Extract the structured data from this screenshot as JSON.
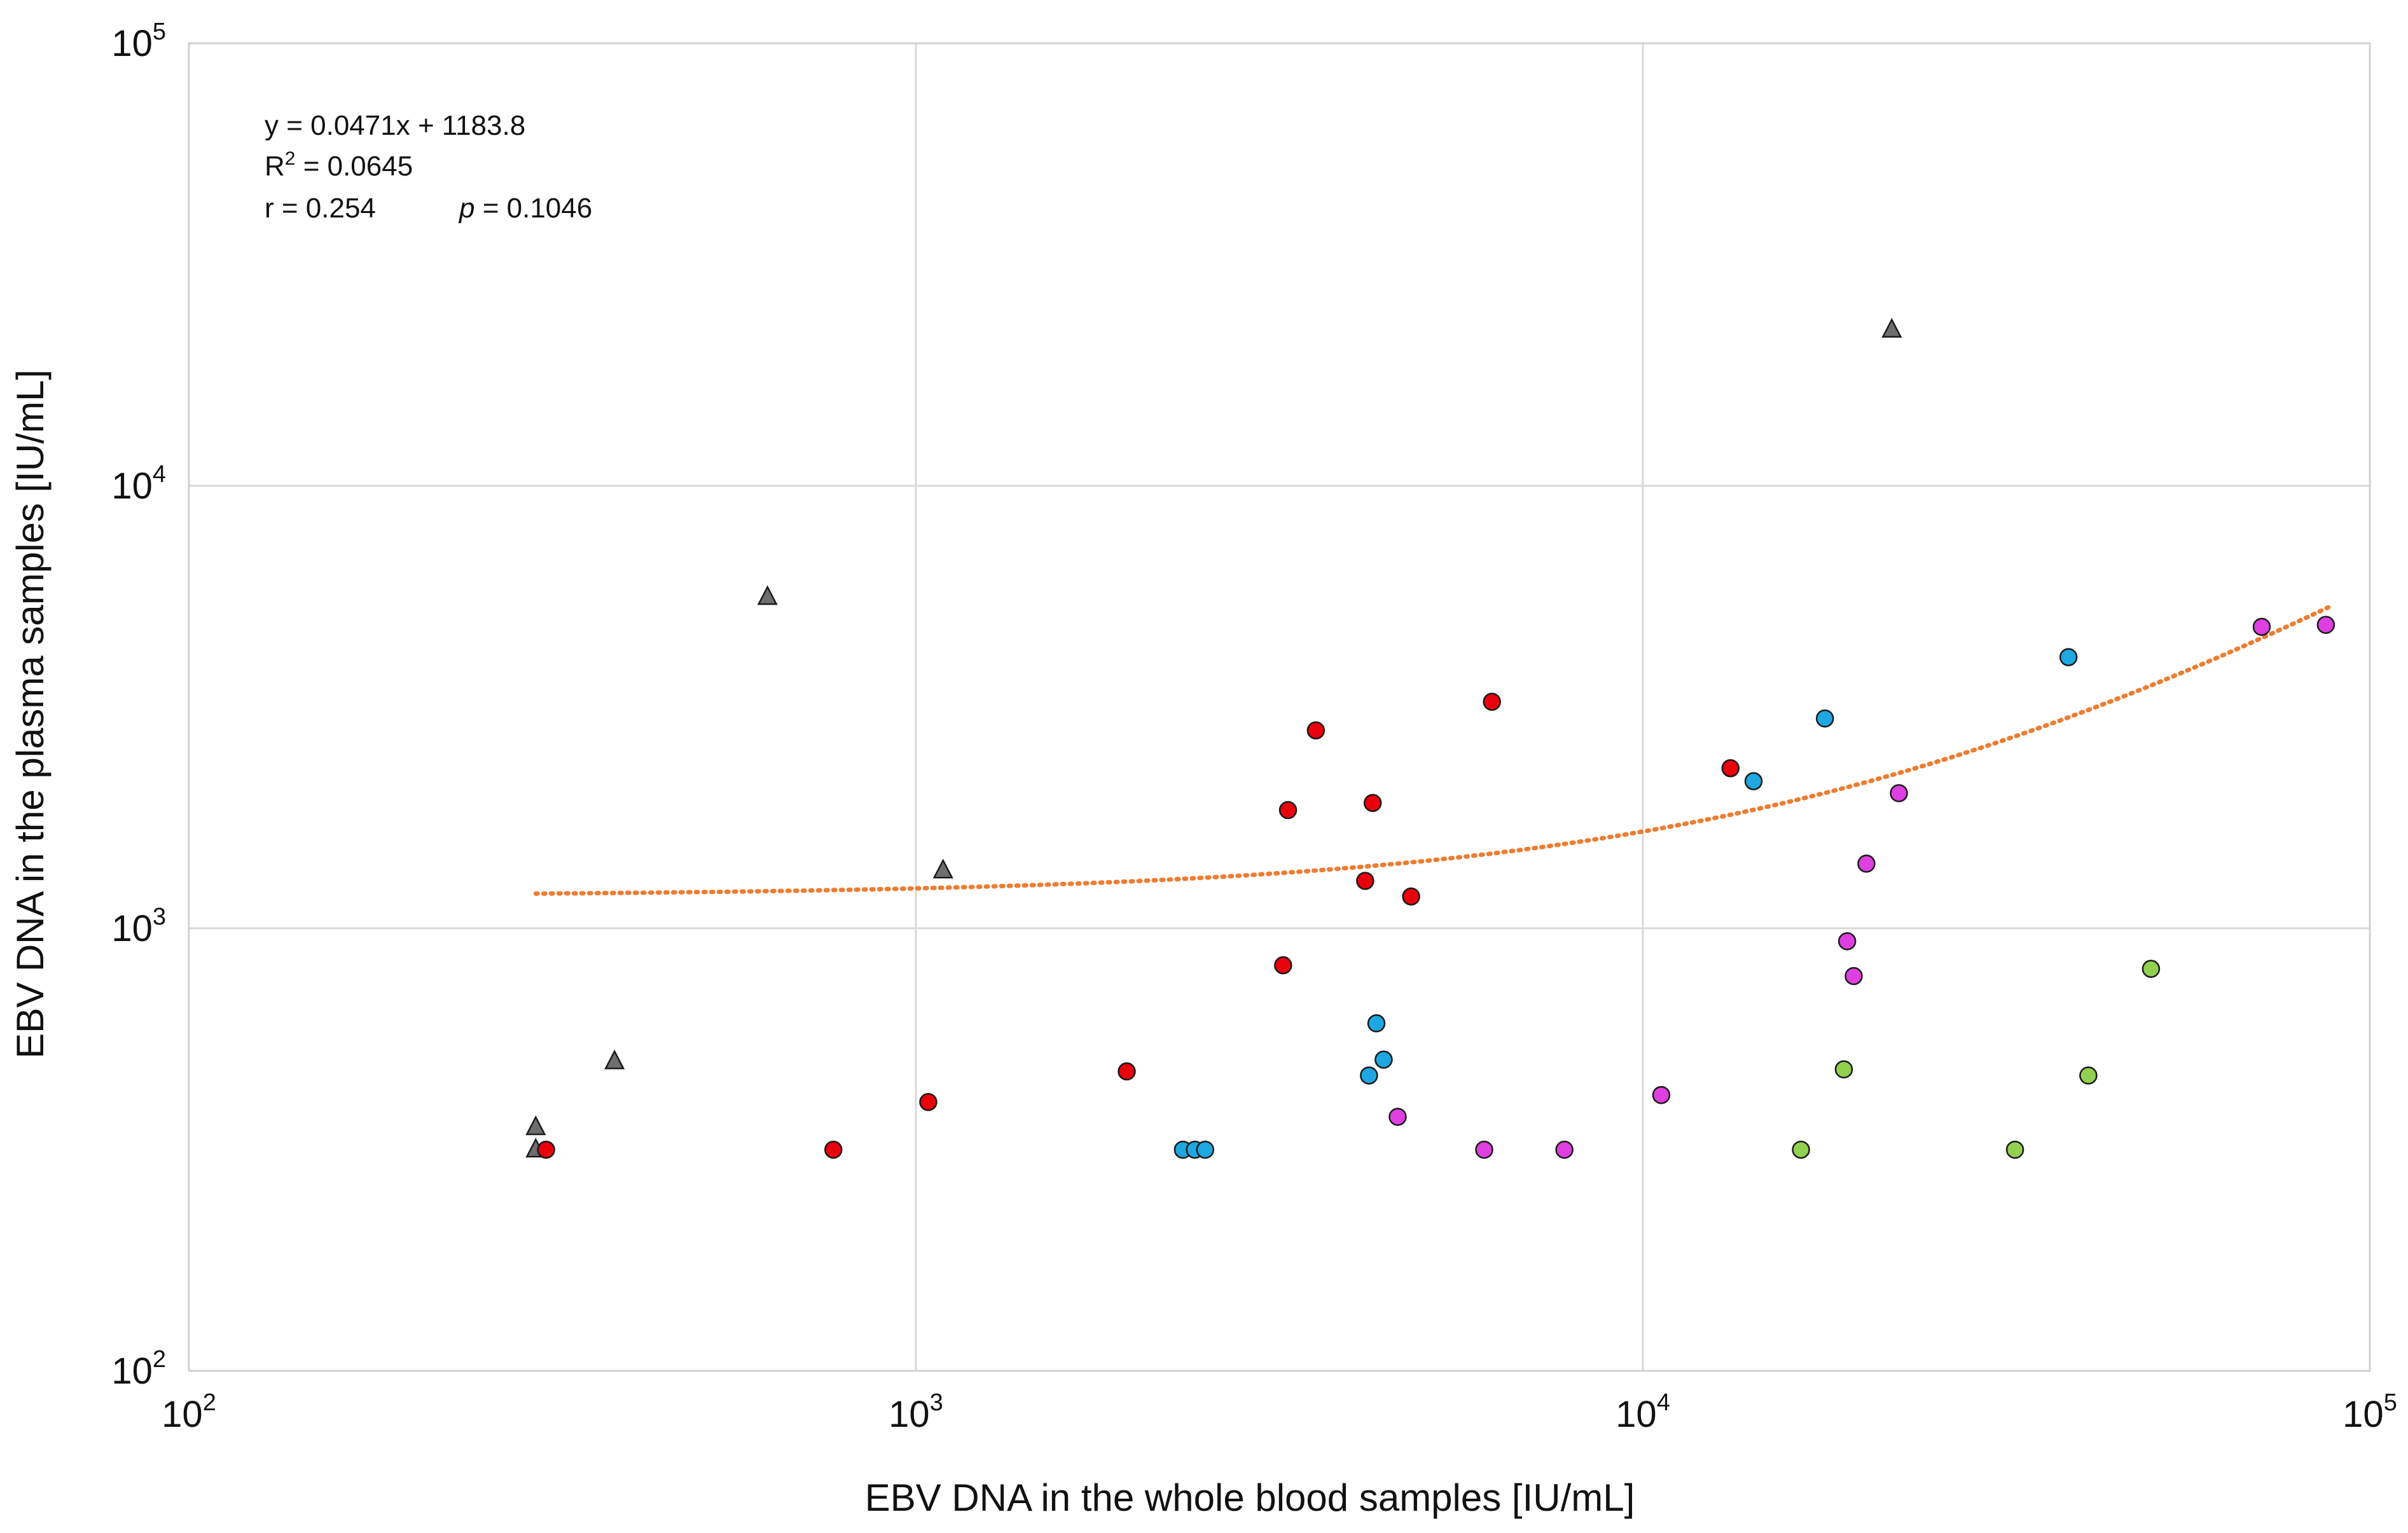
{
  "chart_data": {
    "type": "scatter",
    "title": "",
    "xlabel": "EBV DNA in the whole blood samples [IU/mL]",
    "ylabel": "EBV DNA in the plasma samples [IU/mL]",
    "xscale": "log",
    "yscale": "log",
    "xlim": [
      100,
      100000
    ],
    "ylim": [
      100,
      100000
    ],
    "grid": true,
    "x_ticks": [
      {
        "value": 100,
        "base": "10",
        "exp": "2"
      },
      {
        "value": 1000,
        "base": "10",
        "exp": "3"
      },
      {
        "value": 10000,
        "base": "10",
        "exp": "4"
      },
      {
        "value": 100000,
        "base": "10",
        "exp": "5"
      }
    ],
    "y_ticks": [
      {
        "value": 100,
        "base": "10",
        "exp": "2"
      },
      {
        "value": 1000,
        "base": "10",
        "exp": "3"
      },
      {
        "value": 10000,
        "base": "10",
        "exp": "4"
      },
      {
        "value": 100000,
        "base": "10",
        "exp": "5"
      }
    ],
    "annotations": {
      "equation": "y = 0.0471x + 1183.8",
      "r2_prefix": "R",
      "r2_sup": "2",
      "r2_value": " = 0.0645",
      "r_text": "r = 0.254",
      "p_label": "p",
      "p_value": " = 0.1046"
    },
    "trendline": {
      "slope": 0.0471,
      "intercept": 1183.8,
      "x_from": 300,
      "x_to": 88000,
      "color": "#ED7D31",
      "style": "dotted"
    },
    "series": [
      {
        "name": "gray triangles",
        "marker": "triangle",
        "color": "#6E6E6E",
        "points": [
          [
            300,
            355
          ],
          [
            300,
            316
          ],
          [
            385,
            500
          ],
          [
            625,
            5600
          ],
          [
            1090,
            1350
          ],
          [
            22000,
            22500
          ]
        ]
      },
      {
        "name": "red circles",
        "marker": "circle",
        "color": "#E8000B",
        "points": [
          [
            310,
            316
          ],
          [
            770,
            316
          ],
          [
            1040,
            405
          ],
          [
            1950,
            475
          ],
          [
            3200,
            825
          ],
          [
            3250,
            1850
          ],
          [
            3550,
            2800
          ],
          [
            4150,
            1280
          ],
          [
            4250,
            1920
          ],
          [
            4800,
            1180
          ],
          [
            6200,
            3250
          ],
          [
            13200,
            2300
          ]
        ]
      },
      {
        "name": "blue circles",
        "marker": "circle",
        "color": "#1EA7E1",
        "points": [
          [
            2330,
            316
          ],
          [
            2420,
            316
          ],
          [
            2500,
            316
          ],
          [
            4200,
            465
          ],
          [
            4300,
            610
          ],
          [
            4400,
            505
          ],
          [
            14200,
            2150
          ],
          [
            17800,
            2980
          ],
          [
            38500,
            4100
          ]
        ]
      },
      {
        "name": "magenta circles",
        "marker": "circle",
        "color": "#DE3FE0",
        "points": [
          [
            4600,
            375
          ],
          [
            6050,
            316
          ],
          [
            7800,
            316
          ],
          [
            10600,
            420
          ],
          [
            19100,
            935
          ],
          [
            19500,
            780
          ],
          [
            20300,
            1400
          ],
          [
            22500,
            2020
          ],
          [
            71000,
            4800
          ],
          [
            87000,
            4850
          ]
        ]
      },
      {
        "name": "green circles",
        "marker": "circle",
        "color": "#92D050",
        "points": [
          [
            16500,
            316
          ],
          [
            18900,
            480
          ],
          [
            32500,
            316
          ],
          [
            41000,
            465
          ],
          [
            50000,
            810
          ]
        ]
      }
    ]
  }
}
